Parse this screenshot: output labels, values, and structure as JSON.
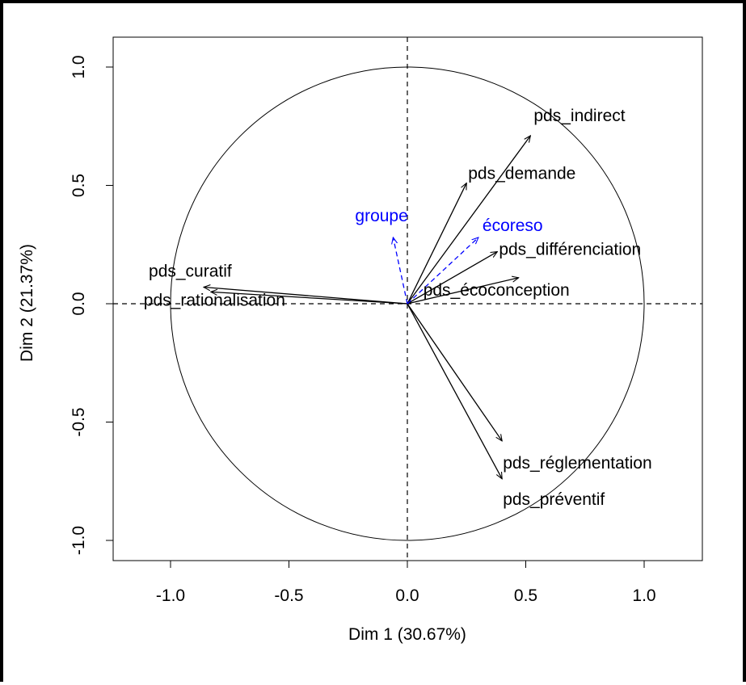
{
  "chart_data": {
    "type": "scatter",
    "subtype": "pca-correlation-circle",
    "xlabel": "Dim 1 (30.67%)",
    "ylabel": "Dim 2 (21.37%)",
    "xlim": [
      -1.25,
      1.25
    ],
    "ylim": [
      -1.1,
      1.1
    ],
    "x_ticks": [
      -1.0,
      -0.5,
      0.0,
      0.5,
      1.0
    ],
    "y_ticks": [
      -1.0,
      -0.5,
      0.0,
      0.5,
      1.0
    ],
    "x_tick_labels": [
      "-1.0",
      "-0.5",
      "0.0",
      "0.5",
      "1.0"
    ],
    "y_tick_labels": [
      "-1.0",
      "-0.5",
      "0.0",
      "0.5",
      "1.0"
    ],
    "unit_circle": true,
    "zero_reference_lines": true,
    "active_color": "#000000",
    "supplementary_color": "#0000ff",
    "variables": [
      {
        "name": "pds_indirect",
        "x": 0.52,
        "y": 0.71,
        "supplementary": false
      },
      {
        "name": "pds_demande",
        "x": 0.25,
        "y": 0.51,
        "supplementary": false
      },
      {
        "name": "pds_différenciation",
        "x": 0.38,
        "y": 0.22,
        "supplementary": false
      },
      {
        "name": "pds_écoconception",
        "x": 0.47,
        "y": 0.11,
        "supplementary": false
      },
      {
        "name": "pds_curatif",
        "x": -0.86,
        "y": 0.07,
        "supplementary": false
      },
      {
        "name": "pds_rationalisation",
        "x": -0.83,
        "y": 0.05,
        "supplementary": false
      },
      {
        "name": "pds_réglementation",
        "x": 0.4,
        "y": -0.58,
        "supplementary": false
      },
      {
        "name": "pds_préventif",
        "x": 0.4,
        "y": -0.74,
        "supplementary": false
      },
      {
        "name": "groupe",
        "x": -0.06,
        "y": 0.28,
        "supplementary": true
      },
      {
        "name": "écoreso",
        "x": 0.3,
        "y": 0.28,
        "supplementary": true
      }
    ]
  }
}
